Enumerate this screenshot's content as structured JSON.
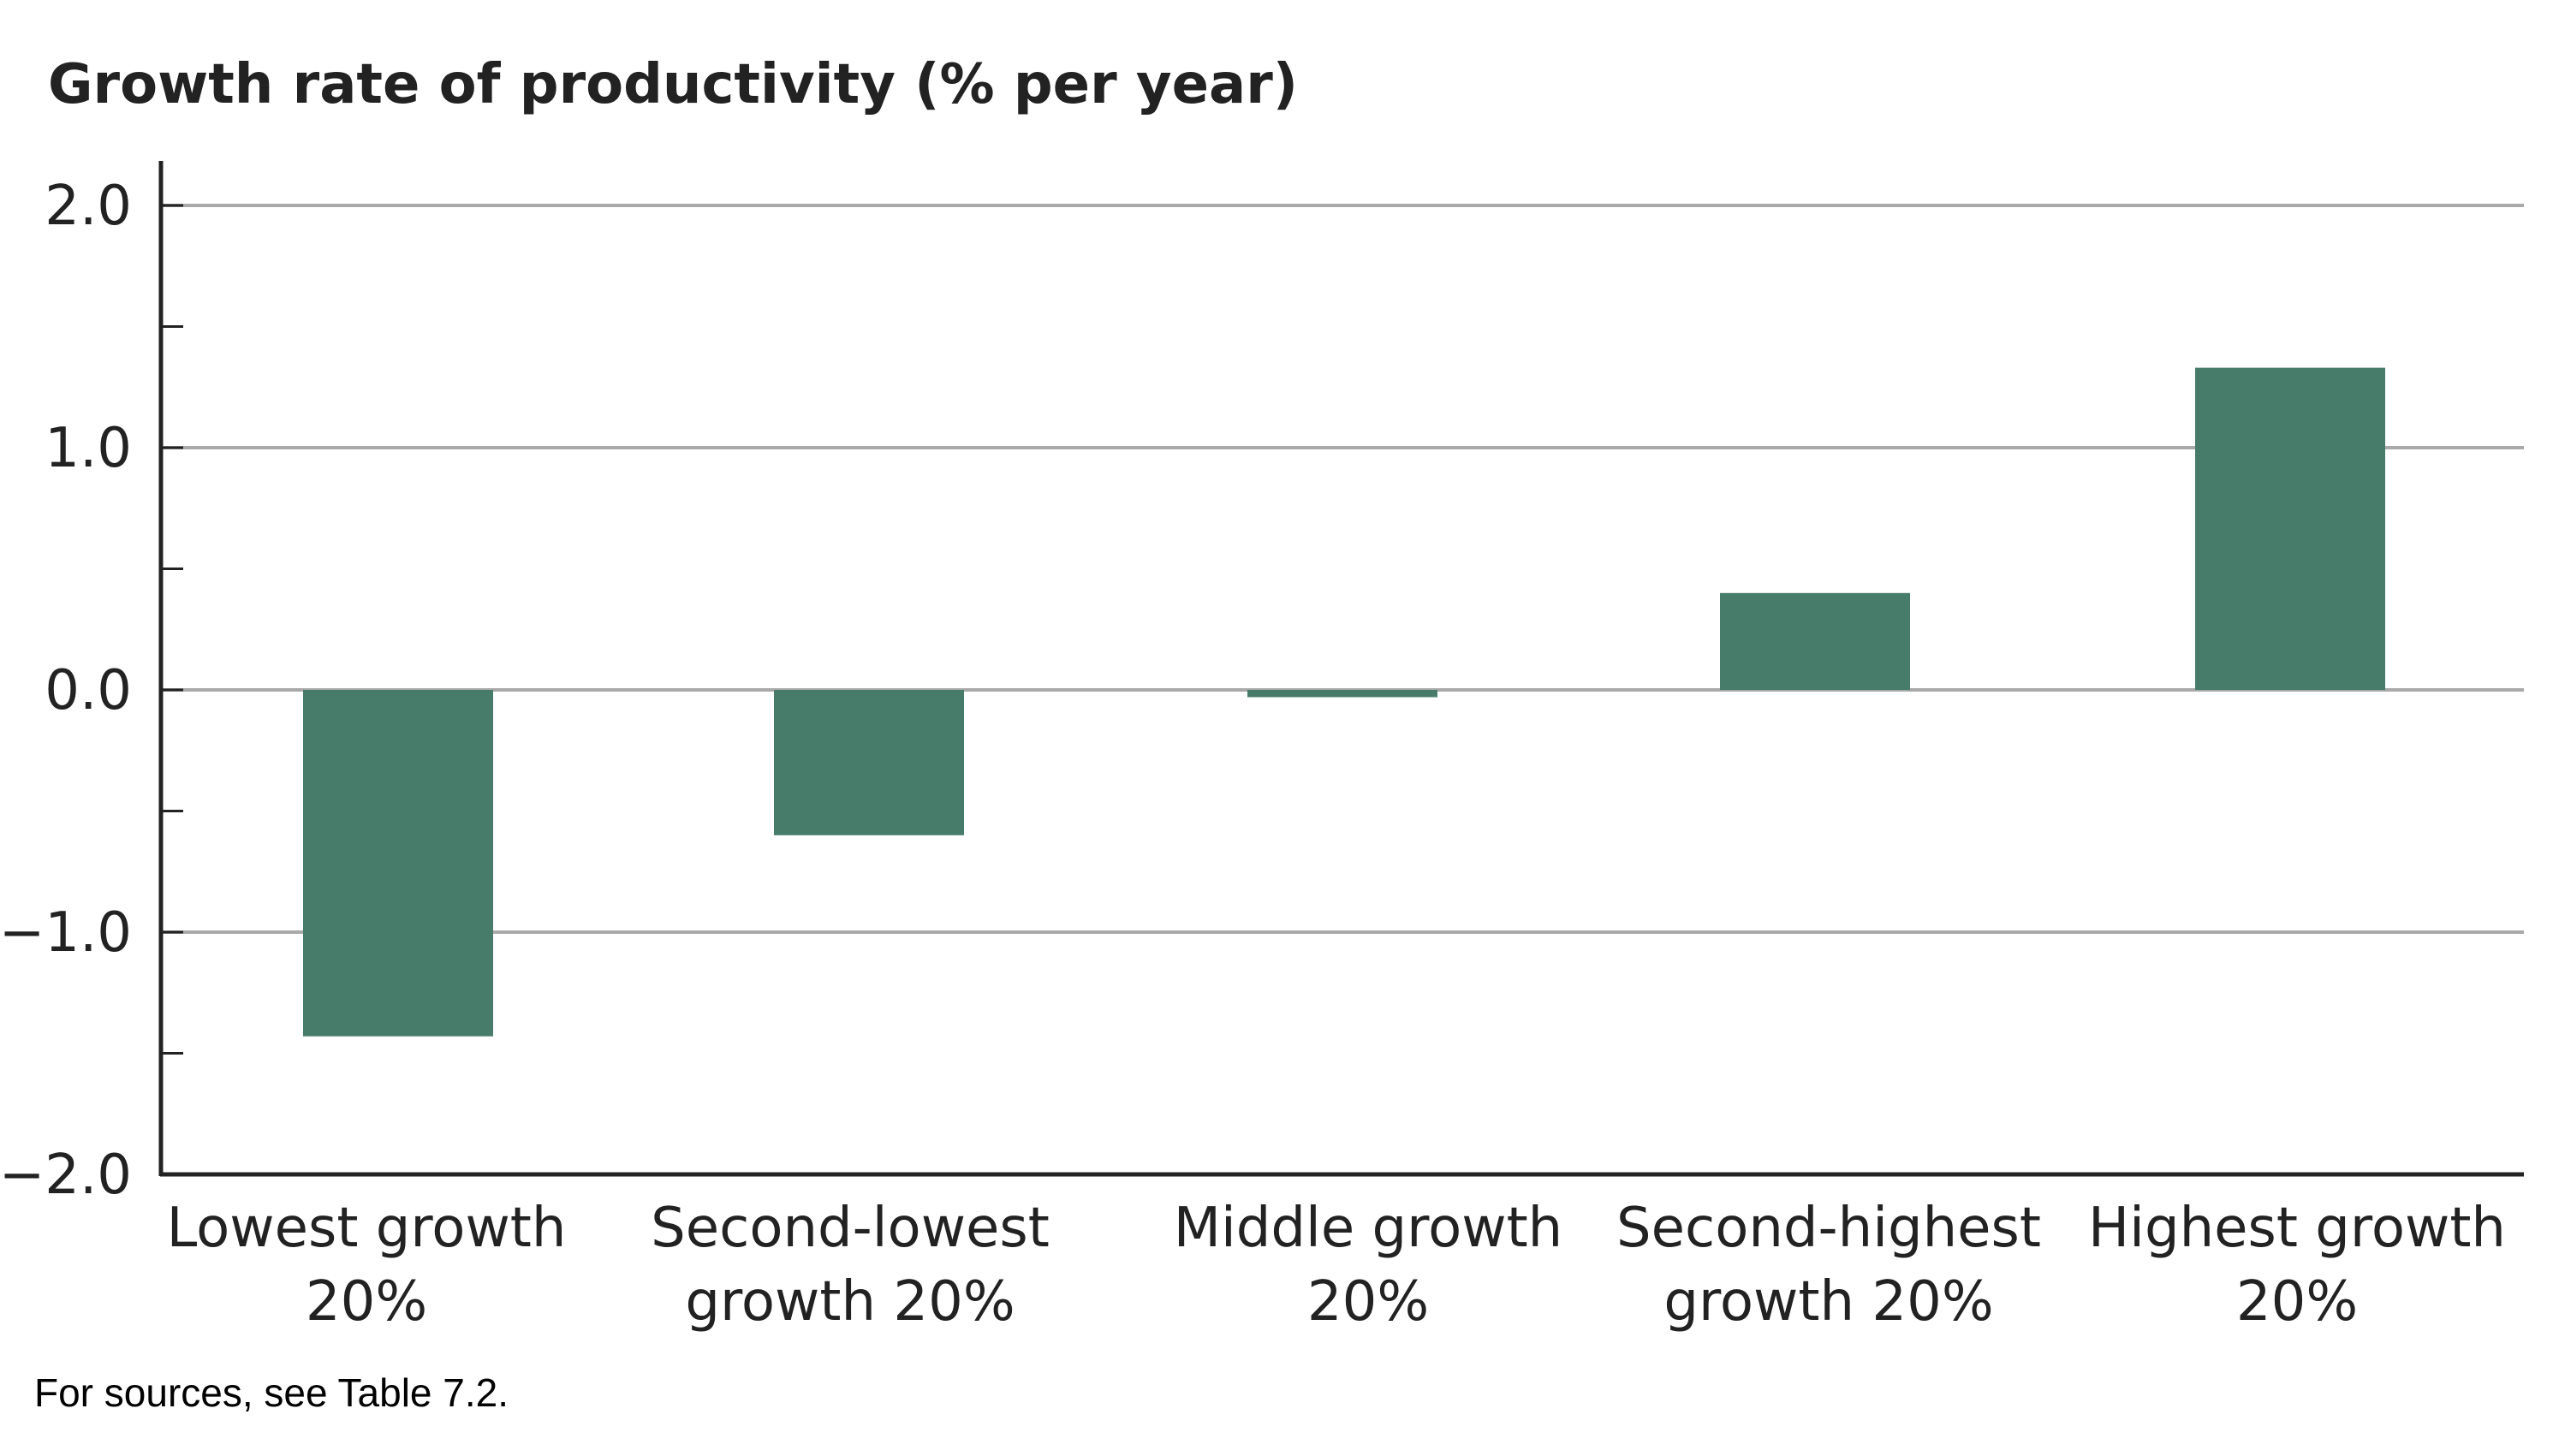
{
  "chart_data": {
    "type": "bar",
    "title": "Growth rate of productivity (% per year)",
    "xlabel": "",
    "ylabel": "",
    "categories": [
      [
        "Lowest growth",
        "20%"
      ],
      [
        "Second-lowest",
        "growth 20%"
      ],
      [
        "Middle growth",
        "20%"
      ],
      [
        "Second-highest",
        "growth 20%"
      ],
      [
        "Highest growth",
        "20%"
      ]
    ],
    "values": [
      -1.43,
      -0.6,
      -0.03,
      0.4,
      1.33
    ],
    "ylim": [
      -2.0,
      2.0
    ],
    "yticks_major": [
      "2.0",
      "1.0",
      "0.0",
      "−1.0",
      "−2.0"
    ],
    "ytick_values": [
      2.0,
      1.0,
      0.0,
      -1.0,
      -2.0
    ],
    "yticks_minor": [
      1.5,
      0.5,
      -0.5,
      -1.5
    ],
    "grid": true,
    "legend": "none",
    "colors": {
      "bar": "#477c6a",
      "grid": "#a9a9a9",
      "axis": "#222222",
      "text": "#222222"
    }
  },
  "note": "For sources, see Table 7.2."
}
